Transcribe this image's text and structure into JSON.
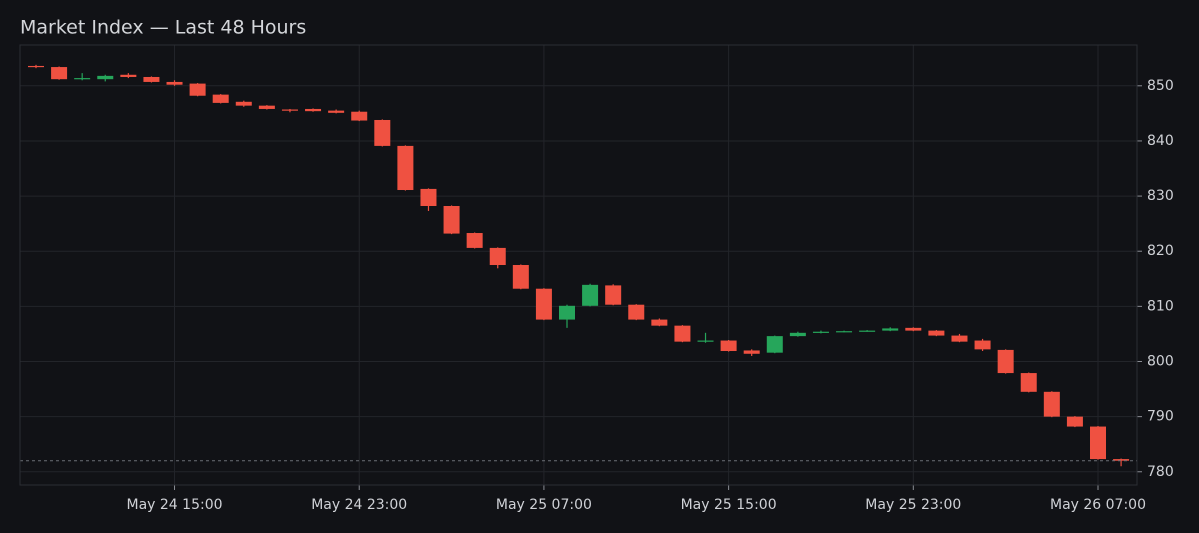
{
  "chart_data": {
    "type": "candlestick",
    "title": "Market Index — Last 48 Hours",
    "x": [
      "May 24 09:00",
      "May 24 10:00",
      "May 24 11:00",
      "May 24 12:00",
      "May 24 13:00",
      "May 24 14:00",
      "May 24 15:00",
      "May 24 16:00",
      "May 24 17:00",
      "May 24 18:00",
      "May 24 19:00",
      "May 24 20:00",
      "May 24 21:00",
      "May 24 22:00",
      "May 24 23:00",
      "May 25 00:00",
      "May 25 01:00",
      "May 25 02:00",
      "May 25 03:00",
      "May 25 04:00",
      "May 25 05:00",
      "May 25 06:00",
      "May 25 07:00",
      "May 25 08:00",
      "May 25 09:00",
      "May 25 10:00",
      "May 25 11:00",
      "May 25 12:00",
      "May 25 13:00",
      "May 25 14:00",
      "May 25 15:00",
      "May 25 16:00",
      "May 25 17:00",
      "May 25 18:00",
      "May 25 19:00",
      "May 25 20:00",
      "May 25 21:00",
      "May 25 22:00",
      "May 25 23:00",
      "May 26 00:00",
      "May 26 01:00",
      "May 26 02:00",
      "May 26 03:00",
      "May 26 04:00",
      "May 26 05:00",
      "May 26 06:00",
      "May 26 07:00",
      "May 26 08:00"
    ],
    "open": [
      853.6,
      853.4,
      851.2,
      851.2,
      852.0,
      851.6,
      850.7,
      850.4,
      848.4,
      847.1,
      846.4,
      845.7,
      845.8,
      845.5,
      845.3,
      843.8,
      839.1,
      831.3,
      828.2,
      823.3,
      820.6,
      817.5,
      813.2,
      807.6,
      810.1,
      813.8,
      810.3,
      807.6,
      806.5,
      803.6,
      803.8,
      802.0,
      801.6,
      804.6,
      805.2,
      805.4,
      805.5,
      805.6,
      806.1,
      805.6,
      804.7,
      803.8,
      802.1,
      797.9,
      794.5,
      790.0,
      788.2,
      782.3
    ],
    "high": [
      853.8,
      853.5,
      852.3,
      852.0,
      852.3,
      851.7,
      851.0,
      850.5,
      848.5,
      847.3,
      846.5,
      845.8,
      845.9,
      845.7,
      845.5,
      843.9,
      839.2,
      831.4,
      828.3,
      823.4,
      820.7,
      817.6,
      813.3,
      810.3,
      814.1,
      814.0,
      810.4,
      807.8,
      806.6,
      805.2,
      803.9,
      802.2,
      804.7,
      805.4,
      805.6,
      805.6,
      805.7,
      806.2,
      806.2,
      805.7,
      805.0,
      804.1,
      802.2,
      798.0,
      794.6,
      790.1,
      788.3,
      782.4
    ],
    "low": [
      853.2,
      851.1,
      851.0,
      850.8,
      851.4,
      850.6,
      850.0,
      848.1,
      846.8,
      846.2,
      845.7,
      845.2,
      845.3,
      845.0,
      843.6,
      839.0,
      831.0,
      827.3,
      823.1,
      820.5,
      816.9,
      813.1,
      807.5,
      806.1,
      810.0,
      810.2,
      807.5,
      806.4,
      803.5,
      803.4,
      801.8,
      801.0,
      801.5,
      804.5,
      805.1,
      805.3,
      805.4,
      805.5,
      805.5,
      804.6,
      803.5,
      801.9,
      797.8,
      794.4,
      789.9,
      788.1,
      782.2,
      781.0
    ],
    "close": [
      853.4,
      851.2,
      851.4,
      851.8,
      851.6,
      850.7,
      850.2,
      848.2,
      846.9,
      846.4,
      845.8,
      845.5,
      845.4,
      845.1,
      843.7,
      839.1,
      831.1,
      828.2,
      823.2,
      820.6,
      817.5,
      813.2,
      807.6,
      810.1,
      813.9,
      810.3,
      807.6,
      806.5,
      803.6,
      803.8,
      801.9,
      801.4,
      804.6,
      805.2,
      805.4,
      805.5,
      805.6,
      806.0,
      805.6,
      804.7,
      803.6,
      802.2,
      797.9,
      794.5,
      790.0,
      788.2,
      782.3,
      782.0
    ],
    "up_color": "#26a65b",
    "down_color": "#ef5141",
    "ylim": [
      777.6,
      857.4
    ],
    "yticks": [
      780,
      790,
      800,
      810,
      820,
      830,
      840,
      850
    ],
    "xticks": [
      "May 24 15:00",
      "May 24 23:00",
      "May 25 07:00",
      "May 25 15:00",
      "May 25 23:00",
      "May 26 07:00"
    ],
    "grid": true,
    "last_price_line": true
  }
}
